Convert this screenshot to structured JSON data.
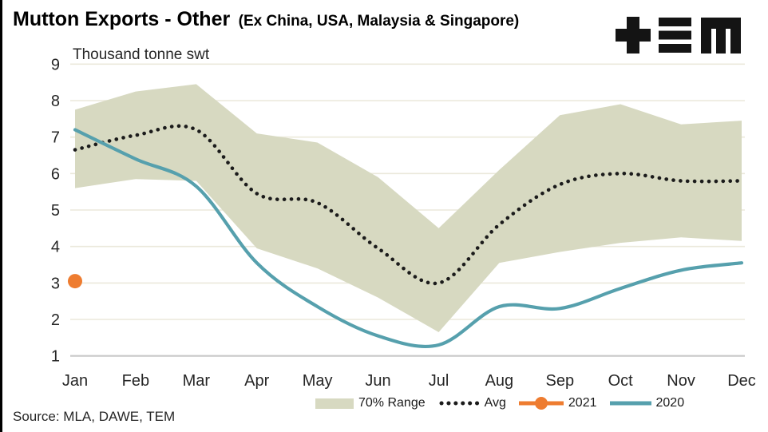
{
  "title": {
    "main": "Mutton Exports - Other",
    "qualifier": "(Ex China, USA, Malaysia & Singapore)"
  },
  "subtitle": "Thousand tonne swt",
  "source": "Source: MLA, DAWE, TEM",
  "logo_alt": "TEM",
  "colors": {
    "band": "#d7d9c1",
    "avg": "#1b1b1b",
    "y2021": "#ee7c30",
    "y2020": "#56a0ad",
    "grid": "#ebe9db",
    "axis": "#c9c9c9",
    "text": "#262626"
  },
  "legend": [
    {
      "label": "70% Range"
    },
    {
      "label": "Avg"
    },
    {
      "label": "2021"
    },
    {
      "label": "2020"
    }
  ],
  "chart_data": {
    "type": "line",
    "title": "Mutton Exports - Other (Ex China, USA, Malaysia & Singapore)",
    "ylabel": "Thousand tonne swt",
    "xlabel": "",
    "ylim": [
      1,
      9
    ],
    "yticks": [
      1,
      2,
      3,
      4,
      5,
      6,
      7,
      8,
      9
    ],
    "grid": true,
    "legend_position": "bottom",
    "categories": [
      "Jan",
      "Feb",
      "Mar",
      "Apr",
      "May",
      "Jun",
      "Jul",
      "Aug",
      "Sep",
      "Oct",
      "Nov",
      "Dec"
    ],
    "series": [
      {
        "name": "70% Range",
        "type": "band",
        "color": "#d7d9c1",
        "upper": [
          7.75,
          8.25,
          8.45,
          7.1,
          6.85,
          5.9,
          4.5,
          6.1,
          7.6,
          7.9,
          7.35,
          7.45
        ],
        "lower": [
          5.6,
          5.85,
          5.8,
          3.95,
          3.4,
          2.6,
          1.65,
          3.55,
          3.85,
          4.1,
          4.25,
          4.15
        ]
      },
      {
        "name": "Avg",
        "type": "dotted-line",
        "color": "#1b1b1b",
        "values": [
          6.65,
          7.05,
          7.2,
          5.45,
          5.2,
          3.95,
          3.0,
          4.6,
          5.7,
          6.0,
          5.8,
          5.8
        ]
      },
      {
        "name": "2021",
        "type": "point",
        "color": "#ee7c30",
        "values": [
          3.05,
          null,
          null,
          null,
          null,
          null,
          null,
          null,
          null,
          null,
          null,
          null
        ]
      },
      {
        "name": "2020",
        "type": "line",
        "color": "#56a0ad",
        "values": [
          7.2,
          6.4,
          5.65,
          3.55,
          2.35,
          1.55,
          1.3,
          2.35,
          2.3,
          2.85,
          3.35,
          3.55
        ]
      }
    ]
  }
}
